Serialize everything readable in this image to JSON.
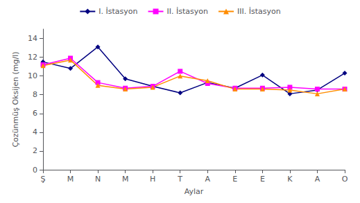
{
  "chart_data": {
    "type": "line",
    "categories": [
      "Ş",
      "M",
      "N",
      "M",
      "H",
      "T",
      "A",
      "E",
      "E",
      "K",
      "A",
      "O"
    ],
    "series": [
      {
        "name": "I. İstasyon",
        "color": "#000080",
        "marker": "diamond",
        "values": [
          11.5,
          10.8,
          13.1,
          9.7,
          8.9,
          8.2,
          9.3,
          8.7,
          10.1,
          8.1,
          8.5,
          10.3
        ]
      },
      {
        "name": "II. İstasyon",
        "color": "#FF00FF",
        "marker": "square",
        "values": [
          11.2,
          11.9,
          9.3,
          8.7,
          8.9,
          10.5,
          9.2,
          8.7,
          8.7,
          8.8,
          8.6,
          8.6
        ]
      },
      {
        "name": "III. İstasyon",
        "color": "#FF8C00",
        "marker": "triangle",
        "values": [
          11.1,
          11.7,
          9.0,
          8.6,
          8.8,
          10.0,
          9.5,
          8.6,
          8.6,
          8.5,
          8.1,
          8.6
        ]
      }
    ],
    "ylabel": "Çozünmüş Oksijen (mg/l)",
    "xlabel": "Aylar",
    "ylim": [
      0,
      15
    ],
    "yticks": [
      0,
      2,
      4,
      6,
      8,
      10,
      12,
      14
    ],
    "grid": false,
    "legend": "top"
  }
}
